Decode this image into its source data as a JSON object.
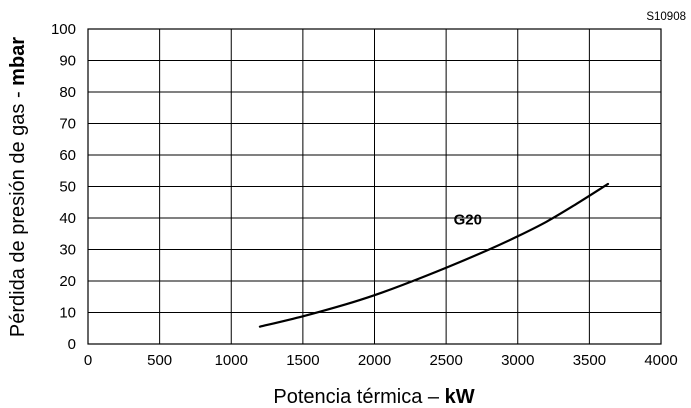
{
  "figure_code": "S10908",
  "chart_data": {
    "type": "line",
    "xlabel_prefix": "Potencia térmica – ",
    "xlabel_unit": "kW",
    "ylabel_prefix": "Pérdida de presión de gas - ",
    "ylabel_unit": "mbar",
    "xlim": [
      0,
      4000
    ],
    "ylim": [
      0,
      100
    ],
    "xticks": [
      0,
      500,
      1000,
      1500,
      2000,
      2500,
      3000,
      3500,
      4000
    ],
    "yticks": [
      0,
      10,
      20,
      30,
      40,
      50,
      60,
      70,
      80,
      90,
      100
    ],
    "grid": true,
    "series": [
      {
        "name": "G20",
        "x": [
          1200,
          1500,
          1800,
          2000,
          2200,
          2500,
          2800,
          3000,
          3200,
          3400,
          3630
        ],
        "y": [
          5.5,
          8.8,
          12.6,
          15.5,
          18.8,
          24.2,
          30,
          34.2,
          38.8,
          44.2,
          50.8
        ]
      }
    ]
  }
}
